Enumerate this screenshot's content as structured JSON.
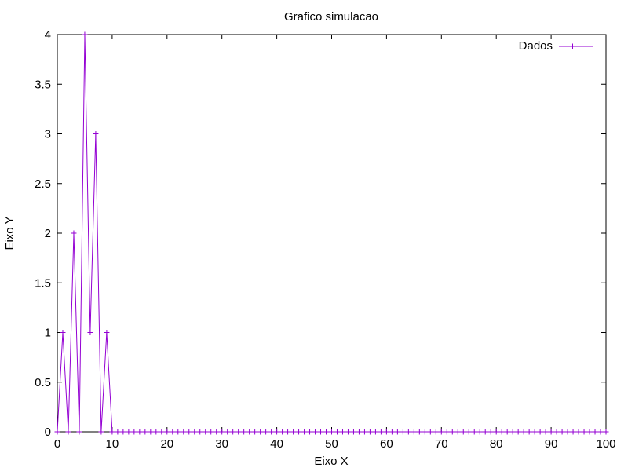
{
  "chart_data": {
    "type": "line",
    "title": "Grafico simulacao",
    "xlabel": "Eixo X",
    "ylabel": "Eixo Y",
    "xlim": [
      0,
      100
    ],
    "ylim": [
      0,
      4
    ],
    "x_ticks": [
      0,
      10,
      20,
      30,
      40,
      50,
      60,
      70,
      80,
      90,
      100
    ],
    "y_ticks": [
      0,
      0.5,
      1,
      1.5,
      2,
      2.5,
      3,
      3.5,
      4
    ],
    "x_tick_labels": [
      "0",
      "10",
      "20",
      "30",
      "40",
      "50",
      "60",
      "70",
      "80",
      "90",
      "100"
    ],
    "y_tick_labels": [
      "0",
      "0.5",
      "1",
      "1.5",
      "2",
      "2.5",
      "3",
      "3.5",
      "4"
    ],
    "grid": false,
    "legend_position": "top-right",
    "series": [
      {
        "name": "Dados",
        "color": "#9400d3",
        "marker": "plus",
        "x": [
          0,
          1,
          2,
          3,
          4,
          5,
          6,
          7,
          8,
          9,
          10,
          11,
          12,
          13,
          14,
          15,
          16,
          17,
          18,
          19,
          20,
          21,
          22,
          23,
          24,
          25,
          26,
          27,
          28,
          29,
          30,
          31,
          32,
          33,
          34,
          35,
          36,
          37,
          38,
          39,
          40,
          41,
          42,
          43,
          44,
          45,
          46,
          47,
          48,
          49,
          50,
          51,
          52,
          53,
          54,
          55,
          56,
          57,
          58,
          59,
          60,
          61,
          62,
          63,
          64,
          65,
          66,
          67,
          68,
          69,
          70,
          71,
          72,
          73,
          74,
          75,
          76,
          77,
          78,
          79,
          80,
          81,
          82,
          83,
          84,
          85,
          86,
          87,
          88,
          89,
          90,
          91,
          92,
          93,
          94,
          95,
          96,
          97,
          98,
          99,
          100
        ],
        "y": [
          0,
          1,
          0,
          2,
          0,
          4,
          1,
          3,
          0,
          1,
          0,
          0,
          0,
          0,
          0,
          0,
          0,
          0,
          0,
          0,
          0,
          0,
          0,
          0,
          0,
          0,
          0,
          0,
          0,
          0,
          0,
          0,
          0,
          0,
          0,
          0,
          0,
          0,
          0,
          0,
          0,
          0,
          0,
          0,
          0,
          0,
          0,
          0,
          0,
          0,
          0,
          0,
          0,
          0,
          0,
          0,
          0,
          0,
          0,
          0,
          0,
          0,
          0,
          0,
          0,
          0,
          0,
          0,
          0,
          0,
          0,
          0,
          0,
          0,
          0,
          0,
          0,
          0,
          0,
          0,
          0,
          0,
          0,
          0,
          0,
          0,
          0,
          0,
          0,
          0,
          0,
          0,
          0,
          0,
          0,
          0,
          0,
          0,
          0,
          0,
          0
        ]
      }
    ]
  }
}
